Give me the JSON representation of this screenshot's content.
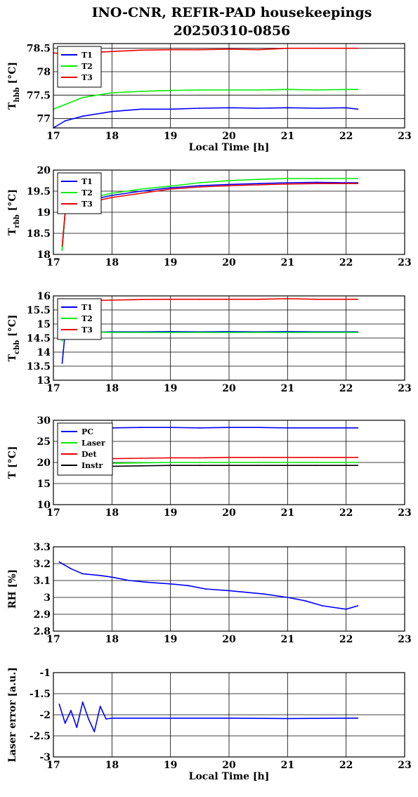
{
  "title": {
    "line1": "INO-CNR, REFIR-PAD housekeepings",
    "line2": "20250310-0856"
  },
  "chart_data": [
    {
      "type": "line",
      "title": "",
      "ylabel": "T_hbb [°C]",
      "xlabel": "Local Time [h]",
      "xlim": [
        17,
        23
      ],
      "ylim": [
        76.8,
        78.6
      ],
      "x_ticks": [
        "17",
        "18",
        "19",
        "20",
        "21",
        "22",
        "23"
      ],
      "y_ticks": [
        "77",
        "77.5",
        "78",
        "78.5"
      ],
      "grid": true,
      "legend_position": "top-left",
      "x": [
        17.0,
        17.2,
        17.5,
        18.0,
        18.5,
        19.0,
        19.5,
        20.0,
        20.5,
        21.0,
        21.5,
        22.0,
        22.2
      ],
      "series": [
        {
          "name": "T1",
          "color": "#0000ff",
          "values": [
            76.8,
            76.95,
            77.05,
            77.15,
            77.2,
            77.2,
            77.22,
            77.23,
            77.22,
            77.23,
            77.22,
            77.23,
            77.2
          ]
        },
        {
          "name": "T2",
          "color": "#00ee00",
          "values": [
            77.2,
            77.3,
            77.45,
            77.55,
            77.58,
            77.6,
            77.61,
            77.61,
            77.61,
            77.62,
            77.61,
            77.62,
            77.62
          ]
        },
        {
          "name": "T3",
          "color": "#ee0000",
          "values": [
            78.4,
            78.38,
            78.4,
            78.43,
            78.46,
            78.47,
            78.47,
            78.48,
            78.47,
            78.5,
            78.5,
            78.5,
            78.5
          ]
        }
      ]
    },
    {
      "type": "line",
      "title": "",
      "ylabel": "T_rbb [°C]",
      "xlabel": "",
      "xlim": [
        17,
        23
      ],
      "ylim": [
        18,
        20
      ],
      "x_ticks": [
        "17",
        "18",
        "19",
        "20",
        "21",
        "22",
        "23"
      ],
      "y_ticks": [
        "18",
        "18.5",
        "19",
        "19.5",
        "20"
      ],
      "grid": true,
      "legend_position": "top-left",
      "x": [
        17.15,
        17.2,
        17.5,
        18.0,
        18.5,
        19.0,
        19.5,
        20.0,
        20.5,
        21.0,
        21.5,
        22.0,
        22.2
      ],
      "series": [
        {
          "name": "T1",
          "color": "#0000ff",
          "values": [
            18.1,
            19.0,
            19.25,
            19.4,
            19.5,
            19.58,
            19.63,
            19.66,
            19.68,
            19.7,
            19.71,
            19.7,
            19.7
          ]
        },
        {
          "name": "T2",
          "color": "#00ee00",
          "values": [
            18.1,
            19.0,
            19.3,
            19.45,
            19.55,
            19.62,
            19.7,
            19.75,
            19.78,
            19.8,
            19.8,
            19.8,
            19.8
          ]
        },
        {
          "name": "T3",
          "color": "#ee0000",
          "values": [
            18.2,
            19.0,
            19.2,
            19.35,
            19.45,
            19.55,
            19.6,
            19.63,
            19.65,
            19.67,
            19.68,
            19.68,
            19.68
          ]
        }
      ]
    },
    {
      "type": "line",
      "title": "",
      "ylabel": "T_cbb [°C]",
      "xlabel": "",
      "xlim": [
        17,
        23
      ],
      "ylim": [
        13,
        16
      ],
      "x_ticks": [
        "17",
        "18",
        "19",
        "20",
        "21",
        "22",
        "23"
      ],
      "y_ticks": [
        "13",
        "13.5",
        "14",
        "14.5",
        "15",
        "15.5",
        "16"
      ],
      "grid": true,
      "legend_position": "top-left",
      "x": [
        17.15,
        17.2,
        17.5,
        18.0,
        18.5,
        19.0,
        19.5,
        20.0,
        20.5,
        21.0,
        21.5,
        22.0,
        22.2
      ],
      "series": [
        {
          "name": "T1",
          "color": "#0000ff",
          "values": [
            13.6,
            14.7,
            14.7,
            14.72,
            14.72,
            14.73,
            14.72,
            14.73,
            14.72,
            14.73,
            14.72,
            14.72,
            14.72
          ]
        },
        {
          "name": "T2",
          "color": "#00ee00",
          "values": [
            14.4,
            14.75,
            14.72,
            14.7,
            14.7,
            14.7,
            14.7,
            14.7,
            14.7,
            14.7,
            14.7,
            14.7,
            14.7
          ]
        },
        {
          "name": "T3",
          "color": "#ee0000",
          "values": [
            15.9,
            15.85,
            15.83,
            15.85,
            15.87,
            15.88,
            15.88,
            15.88,
            15.88,
            15.9,
            15.88,
            15.88,
            15.88
          ]
        }
      ]
    },
    {
      "type": "line",
      "title": "",
      "ylabel": "T [°C]",
      "xlabel": "",
      "xlim": [
        17,
        23
      ],
      "ylim": [
        10,
        30
      ],
      "x_ticks": [
        "17",
        "18",
        "19",
        "20",
        "21",
        "22",
        "23"
      ],
      "y_ticks": [
        "10",
        "15",
        "20",
        "25",
        "30"
      ],
      "grid": true,
      "legend_position": "top-left",
      "x": [
        17.1,
        17.5,
        18.0,
        18.5,
        19.0,
        19.5,
        20.0,
        20.5,
        21.0,
        21.5,
        22.0,
        22.2
      ],
      "series": [
        {
          "name": "PC",
          "color": "#0000ff",
          "values": [
            27.8,
            28.0,
            28.2,
            28.3,
            28.3,
            28.2,
            28.3,
            28.3,
            28.2,
            28.2,
            28.2,
            28.2
          ]
        },
        {
          "name": "Laser",
          "color": "#00ee00",
          "values": [
            19.6,
            19.7,
            19.8,
            19.9,
            20.0,
            20.0,
            20.0,
            20.0,
            20.0,
            20.0,
            20.0,
            20.0
          ]
        },
        {
          "name": "Det",
          "color": "#ee0000",
          "values": [
            20.7,
            20.8,
            20.9,
            21.0,
            21.1,
            21.1,
            21.2,
            21.2,
            21.2,
            21.2,
            21.2,
            21.2
          ]
        },
        {
          "name": "Instr",
          "color": "#000000",
          "values": [
            18.9,
            19.0,
            19.1,
            19.2,
            19.3,
            19.3,
            19.3,
            19.3,
            19.3,
            19.3,
            19.3,
            19.3
          ]
        }
      ]
    },
    {
      "type": "line",
      "title": "",
      "ylabel": "RH [%]",
      "xlabel": "",
      "xlim": [
        17,
        23
      ],
      "ylim": [
        2.8,
        3.3
      ],
      "x_ticks": [
        "17",
        "18",
        "19",
        "20",
        "21",
        "22",
        "23"
      ],
      "y_ticks": [
        "2.8",
        "2.9",
        "3",
        "3.1",
        "3.2",
        "3.3"
      ],
      "grid": true,
      "x": [
        17.1,
        17.3,
        17.5,
        17.8,
        18.0,
        18.3,
        18.6,
        19.0,
        19.3,
        19.6,
        20.0,
        20.3,
        20.6,
        21.0,
        21.3,
        21.6,
        22.0,
        22.2
      ],
      "series": [
        {
          "name": "",
          "color": "#0000ff",
          "values": [
            3.21,
            3.17,
            3.14,
            3.13,
            3.12,
            3.1,
            3.09,
            3.08,
            3.07,
            3.05,
            3.04,
            3.03,
            3.02,
            3.0,
            2.98,
            2.95,
            2.93,
            2.95
          ]
        }
      ]
    },
    {
      "type": "line",
      "title": "",
      "ylabel": "Laser error [a.u.]",
      "xlabel": "Local Time [h]",
      "xlim": [
        17,
        23
      ],
      "ylim": [
        -3,
        -1
      ],
      "x_ticks": [
        "17",
        "18",
        "19",
        "20",
        "21",
        "22",
        "23"
      ],
      "y_ticks": [
        "-3",
        "-2.5",
        "-2",
        "-1.5",
        "-1"
      ],
      "grid": true,
      "x": [
        17.1,
        17.2,
        17.3,
        17.4,
        17.5,
        17.6,
        17.7,
        17.8,
        17.9,
        18.0,
        19.0,
        20.0,
        21.0,
        22.0,
        22.2
      ],
      "series": [
        {
          "name": "",
          "color": "#0000ff",
          "values": [
            -1.75,
            -2.2,
            -1.9,
            -2.3,
            -1.7,
            -2.1,
            -2.4,
            -1.8,
            -2.1,
            -2.08,
            -2.08,
            -2.08,
            -2.09,
            -2.08,
            -2.08
          ]
        }
      ]
    }
  ]
}
